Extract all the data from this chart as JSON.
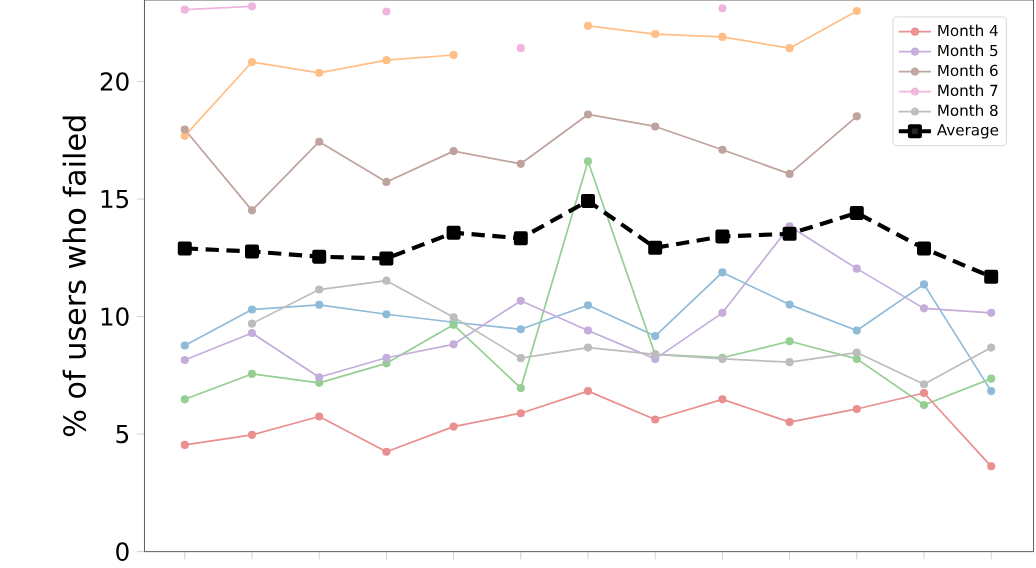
{
  "chart_data": {
    "type": "line",
    "ylabel": "% of users who failed",
    "categories": [
      null,
      null,
      null,
      null,
      null,
      null,
      null,
      null,
      null,
      null,
      null,
      null,
      null
    ],
    "ylim": [
      0,
      23.47
    ],
    "yticks": [
      0,
      5,
      10,
      15,
      20
    ],
    "tick_labels": "y",
    "grid": false,
    "legend": "top right",
    "marker": "circle",
    "line_style": "solid",
    "series": [
      {
        "color": "#8fbbd9",
        "values": [
          8.77,
          10.3,
          10.5,
          10.1,
          9.76,
          9.46,
          10.48,
          9.17,
          11.88,
          10.51,
          9.41,
          11.37,
          6.83
        ]
      },
      {
        "color": "#ffbf86",
        "values": [
          17.69,
          20.83,
          20.37,
          20.91,
          21.13,
          null,
          22.37,
          22.02,
          21.9,
          21.42,
          23.0,
          null,
          null
        ]
      },
      {
        "color": "#95cf93",
        "values": [
          6.48,
          7.56,
          7.18,
          8.01,
          9.65,
          6.96,
          16.61,
          8.39,
          8.25,
          8.95,
          8.2,
          6.24,
          7.36
        ]
      },
      {
        "name": "Month 4",
        "color": "#e98f8f",
        "values": [
          4.54,
          4.97,
          5.75,
          4.25,
          5.32,
          5.89,
          6.83,
          5.62,
          6.48,
          5.51,
          6.07,
          6.75,
          3.63
        ]
      },
      {
        "name": "Month 5",
        "color": "#c4addb",
        "values": [
          8.15,
          9.3,
          7.42,
          8.25,
          8.82,
          10.67,
          9.41,
          8.2,
          10.16,
          13.84,
          12.04,
          10.35,
          10.16
        ]
      },
      {
        "name": "Month 6",
        "color": "#bfa39e",
        "values": [
          17.96,
          14.52,
          17.44,
          15.73,
          17.04,
          16.5,
          18.6,
          18.09,
          17.1,
          16.07,
          18.52,
          null,
          null
        ]
      },
      {
        "name": "Month 7",
        "color": "#efb5dd",
        "values": [
          23.06,
          23.2,
          null,
          22.98,
          null,
          21.42,
          null,
          null,
          23.12,
          null,
          null,
          null,
          null
        ]
      },
      {
        "name": "Month 8",
        "color": "#bdbdbd",
        "values": [
          null,
          9.7,
          11.15,
          11.53,
          9.97,
          8.23,
          8.68,
          8.39,
          8.2,
          8.06,
          8.47,
          7.12,
          8.68
        ]
      },
      {
        "name": "Average",
        "color": "#000000",
        "line_style": "dashed",
        "marker": "square",
        "values": [
          12.9,
          12.77,
          12.55,
          12.47,
          13.57,
          13.33,
          14.92,
          12.93,
          13.41,
          13.52,
          14.41,
          12.9,
          11.69
        ]
      }
    ]
  }
}
